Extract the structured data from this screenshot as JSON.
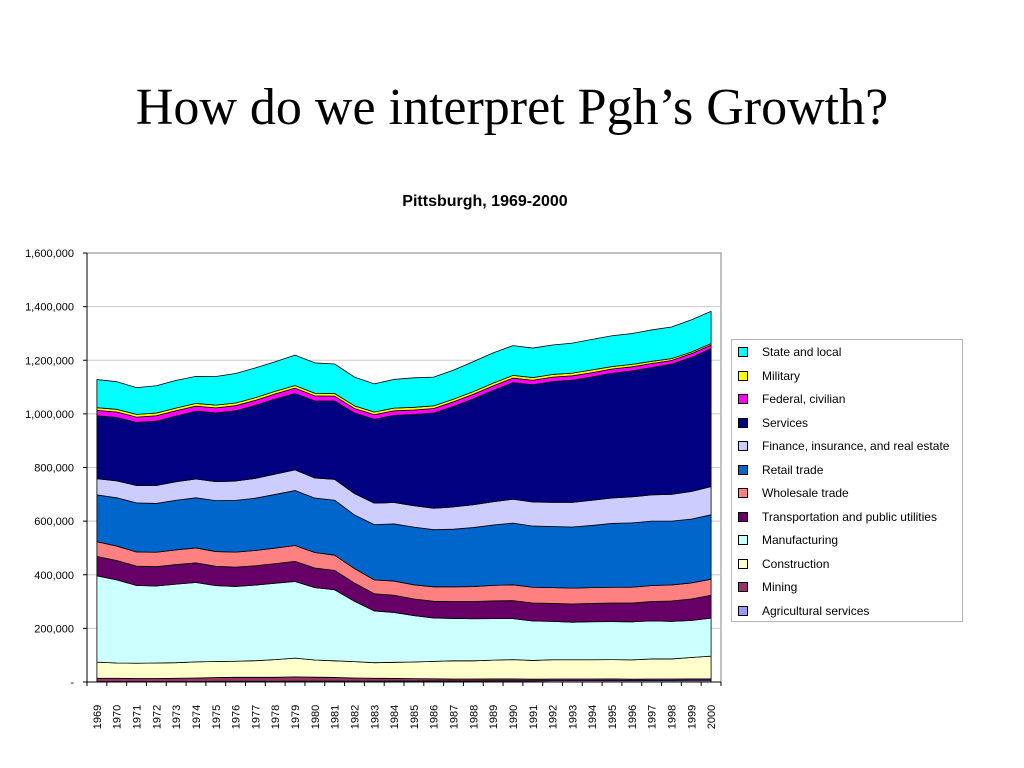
{
  "slide": {
    "title": "How do we interpret Pgh’s Growth?"
  },
  "chart_data": {
    "type": "area",
    "stacked": true,
    "title": "Pittsburgh, 1969-2000",
    "xlabel": "",
    "ylabel": "",
    "ylim": [
      0,
      1600000
    ],
    "yticks": [
      0,
      200000,
      400000,
      600000,
      800000,
      1000000,
      1200000,
      1400000,
      1600000
    ],
    "ytick_labels": [
      "-",
      "200,000",
      "400,000",
      "600,000",
      "800,000",
      "1,000,000",
      "1,200,000",
      "1,400,000",
      "1,600,000"
    ],
    "grid": "horizontal",
    "legend_position": "right",
    "categories": [
      "1969",
      "1970",
      "1971",
      "1972",
      "1973",
      "1974",
      "1975",
      "1976",
      "1977",
      "1978",
      "1979",
      "1980",
      "1981",
      "1982",
      "1983",
      "1984",
      "1985",
      "1986",
      "1987",
      "1988",
      "1989",
      "1990",
      "1991",
      "1992",
      "1993",
      "1994",
      "1995",
      "1996",
      "1997",
      "1998",
      "1999",
      "2000"
    ],
    "series": [
      {
        "name": "Agricultural services",
        "color": "#9999ff",
        "values": [
          2000,
          2000,
          2000,
          2000,
          2000,
          2000,
          2500,
          2500,
          2500,
          2500,
          3000,
          3000,
          3000,
          3000,
          3000,
          3500,
          3500,
          4000,
          4000,
          4000,
          4500,
          4500,
          4500,
          5000,
          5000,
          5000,
          5500,
          5500,
          6000,
          6000,
          6500,
          6500
        ]
      },
      {
        "name": "Mining",
        "color": "#993366",
        "values": [
          12000,
          12000,
          11000,
          11000,
          12000,
          13000,
          14000,
          15000,
          15000,
          15000,
          16000,
          15000,
          14000,
          12000,
          11000,
          10000,
          9000,
          8000,
          7000,
          7000,
          7000,
          7000,
          6000,
          6000,
          6000,
          6000,
          6000,
          5000,
          5000,
          5000,
          5000,
          5000
        ]
      },
      {
        "name": "Construction",
        "color": "#ffffcc",
        "values": [
          60000,
          57000,
          57000,
          58000,
          58000,
          60000,
          60000,
          60000,
          62000,
          66000,
          70000,
          64000,
          62000,
          61000,
          58000,
          60000,
          62000,
          65000,
          68000,
          68000,
          70000,
          72000,
          70000,
          72000,
          72000,
          72000,
          72000,
          72000,
          75000,
          75000,
          80000,
          85000
        ]
      },
      {
        "name": "Manufacturing",
        "color": "#ccffff",
        "values": [
          322000,
          310000,
          290000,
          287000,
          293000,
          296000,
          283000,
          279000,
          282000,
          285000,
          286000,
          270000,
          265000,
          225000,
          193000,
          186000,
          173000,
          162000,
          158000,
          157000,
          155000,
          153000,
          147000,
          143000,
          140000,
          142000,
          142000,
          142000,
          142000,
          140000,
          138000,
          142000
        ]
      },
      {
        "name": "Transportation and public utilities",
        "color": "#660066",
        "values": [
          72000,
          72000,
          72000,
          72000,
          73000,
          73000,
          72000,
          72000,
          72000,
          73000,
          75000,
          73000,
          72000,
          68000,
          64000,
          64000,
          62000,
          62000,
          63000,
          64000,
          66000,
          67000,
          67000,
          67000,
          68000,
          68000,
          69000,
          70000,
          72000,
          76000,
          80000,
          85000
        ]
      },
      {
        "name": "Wholesale trade",
        "color": "#ff8080",
        "values": [
          55000,
          54000,
          53000,
          54000,
          55000,
          56000,
          55000,
          56000,
          57000,
          58000,
          59000,
          58000,
          57000,
          54000,
          52000,
          53000,
          53000,
          54000,
          55000,
          56000,
          58000,
          59000,
          59000,
          59000,
          59000,
          59000,
          59000,
          59000,
          60000,
          60000,
          60000,
          60000
        ]
      },
      {
        "name": "Retail trade",
        "color": "#0066cc",
        "values": [
          175000,
          180000,
          183000,
          182000,
          185000,
          187000,
          190000,
          193000,
          195000,
          200000,
          205000,
          203000,
          205000,
          200000,
          206000,
          213000,
          215000,
          213000,
          215000,
          220000,
          225000,
          230000,
          228000,
          228000,
          228000,
          232000,
          238000,
          240000,
          240000,
          238000,
          238000,
          240000
        ]
      },
      {
        "name": "Finance, insurance, and real estate",
        "color": "#ccccff",
        "values": [
          60000,
          63000,
          65000,
          67000,
          69000,
          70000,
          71000,
          72000,
          74000,
          76000,
          77000,
          75000,
          78000,
          80000,
          80000,
          80000,
          80000,
          80000,
          83000,
          85000,
          87000,
          89000,
          90000,
          90000,
          92000,
          94000,
          95000,
          97000,
          98000,
          100000,
          103000,
          105000
        ]
      },
      {
        "name": "Services",
        "color": "#000080",
        "values": [
          235000,
          237000,
          235000,
          240000,
          245000,
          253000,
          256000,
          262000,
          272000,
          280000,
          285000,
          287000,
          292000,
          300000,
          313000,
          325000,
          340000,
          355000,
          375000,
          395000,
          415000,
          435000,
          437000,
          450000,
          456000,
          460000,
          465000,
          470000,
          475000,
          485000,
          500000,
          515000
        ]
      },
      {
        "name": "Federal, civilian",
        "color": "#ff00ff",
        "values": [
          20000,
          20000,
          20000,
          20000,
          20000,
          19000,
          19000,
          19000,
          19000,
          19000,
          20000,
          19000,
          18000,
          17000,
          17000,
          17000,
          17000,
          17000,
          17000,
          17000,
          17000,
          17000,
          17000,
          17000,
          16000,
          16000,
          16000,
          15000,
          15000,
          14000,
          14000,
          13000
        ]
      },
      {
        "name": "Military",
        "color": "#ffff00",
        "values": [
          10000,
          10000,
          10000,
          10000,
          10000,
          10000,
          10000,
          10000,
          10000,
          10000,
          10000,
          10000,
          10000,
          10000,
          10000,
          10000,
          10000,
          10000,
          10000,
          10000,
          10000,
          10000,
          10000,
          10000,
          10000,
          10000,
          9000,
          9000,
          8000,
          7000,
          6000,
          6000
        ]
      },
      {
        "name": "State and local",
        "color": "#00ffff",
        "values": [
          105000,
          103000,
          100000,
          102000,
          103000,
          101000,
          107000,
          110000,
          111000,
          110000,
          113000,
          113000,
          110000,
          107000,
          105000,
          107000,
          110000,
          107000,
          108000,
          112000,
          113000,
          111000,
          110000,
          110000,
          112000,
          114000,
          115000,
          115000,
          117000,
          118000,
          120000,
          120000
        ]
      }
    ],
    "legend_order": [
      "State and local",
      "Military",
      "Federal, civilian",
      "Services",
      "Finance, insurance, and real estate",
      "Retail trade",
      "Wholesale trade",
      "Transportation and public utilities",
      "Manufacturing",
      "Construction",
      "Mining",
      "Agricultural services"
    ]
  }
}
